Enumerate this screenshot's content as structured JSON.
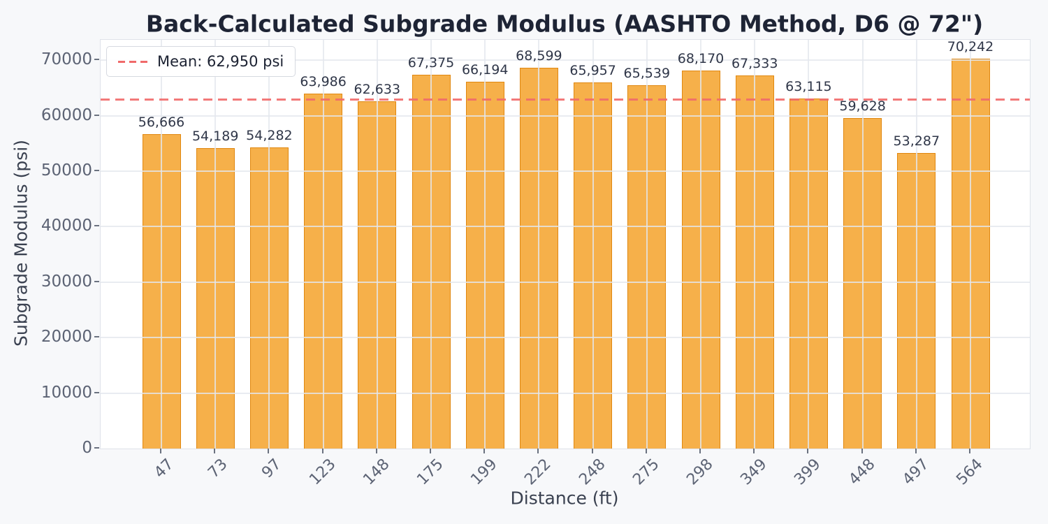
{
  "chart_data": {
    "type": "bar",
    "title": "Back-Calculated Subgrade Modulus (AASHTO Method, D6 @ 72\")",
    "xlabel": "Distance (ft)",
    "ylabel": "Subgrade Modulus (psi)",
    "categories": [
      "47",
      "73",
      "97",
      "123",
      "148",
      "175",
      "199",
      "222",
      "248",
      "275",
      "298",
      "349",
      "399",
      "448",
      "497",
      "564"
    ],
    "values": [
      56666,
      54189,
      54282,
      63986,
      62633,
      67375,
      66194,
      68599,
      65957,
      65539,
      68170,
      67333,
      63115,
      59628,
      53287,
      70242
    ],
    "value_labels": [
      "56,666",
      "54,189",
      "54,282",
      "63,986",
      "62,633",
      "67,375",
      "66,194",
      "68,599",
      "65,957",
      "65,539",
      "68,170",
      "67,333",
      "63,115",
      "59,628",
      "53,287",
      "70,242"
    ],
    "mean": 62950,
    "legend": {
      "label": "Mean: 62,950 psi",
      "position": "upper left",
      "line_style": "dashed"
    },
    "yticks": [
      0,
      10000,
      20000,
      30000,
      40000,
      50000,
      60000,
      70000
    ],
    "ytick_labels": [
      "0",
      "10000",
      "20000",
      "30000",
      "40000",
      "50000",
      "60000",
      "70000"
    ],
    "ylim": [
      0,
      73700
    ],
    "grid": true,
    "grid_above_bars": true,
    "colors": {
      "figure_bg": "#F7F8FA",
      "axes_bg": "#FFFFFF",
      "bar_fill": "#F6B04A",
      "bar_edge": "#E0870F",
      "mean_line": "#F06A6A",
      "grid": "#E4E7EE",
      "title_text": "#1E2435",
      "tick_text": "#5C6374",
      "axis_label_text": "#3A4150",
      "value_label_text": "#2F3648"
    }
  }
}
